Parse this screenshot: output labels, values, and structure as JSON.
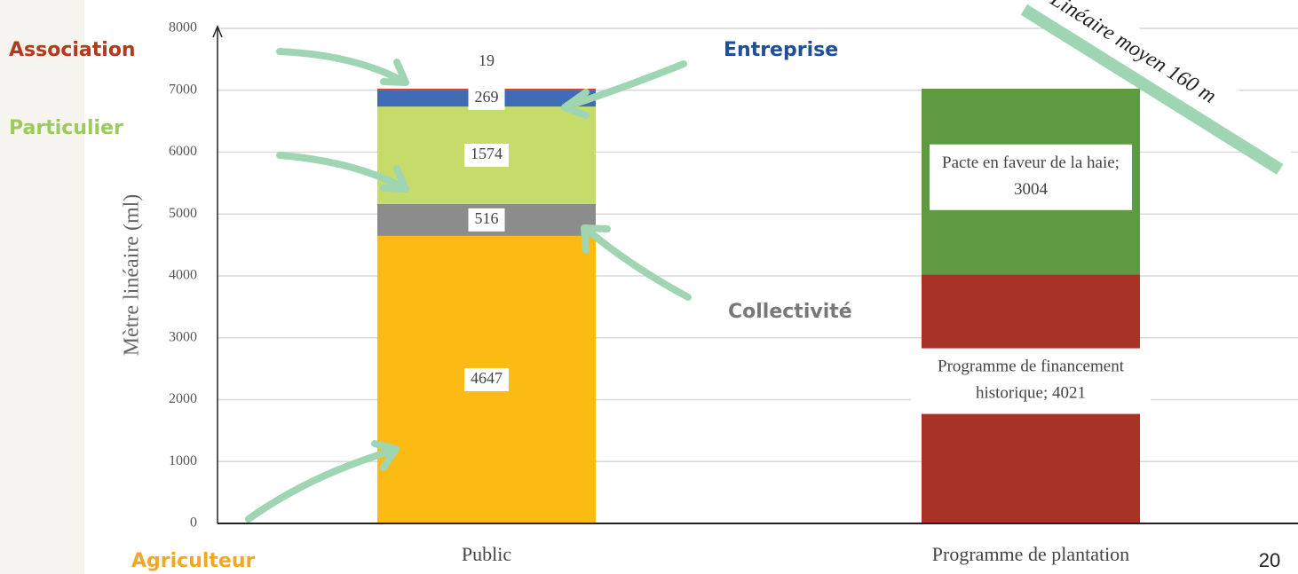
{
  "chart_data": {
    "type": "stacked_bar",
    "ylabel": "Mètre linéaire (ml)",
    "categories": [
      "Public",
      "Programme de plantation"
    ],
    "series": [
      {
        "name": "Agriculteur",
        "color": "#fbbb12",
        "values": [
          4647,
          null
        ]
      },
      {
        "name": "Collectivité",
        "color": "#8c8c8c",
        "values": [
          516,
          null
        ]
      },
      {
        "name": "Particulier",
        "color": "#c5dc6a",
        "values": [
          1574,
          null
        ]
      },
      {
        "name": "Entreprise",
        "color": "#3f6cb5",
        "values": [
          269,
          null
        ]
      },
      {
        "name": "Association",
        "color": "#c8402a",
        "values": [
          19,
          null
        ]
      },
      {
        "color": "#a83225",
        "values": [
          null,
          4021
        ],
        "value_labels": [
          null,
          "Programme de financement historique; 4021"
        ]
      },
      {
        "color": "#5e9a41",
        "values": [
          null,
          3004
        ],
        "value_labels": [
          null,
          "Pacte en faveur de la haie; 3004"
        ]
      }
    ],
    "ylim": [
      0,
      8000
    ],
    "yticks": [
      0,
      1000,
      2000,
      3000,
      4000,
      5000,
      6000,
      7000,
      8000
    ],
    "grid": true,
    "annotation": "Linéaire moyen 160 m",
    "page_number": "20"
  }
}
